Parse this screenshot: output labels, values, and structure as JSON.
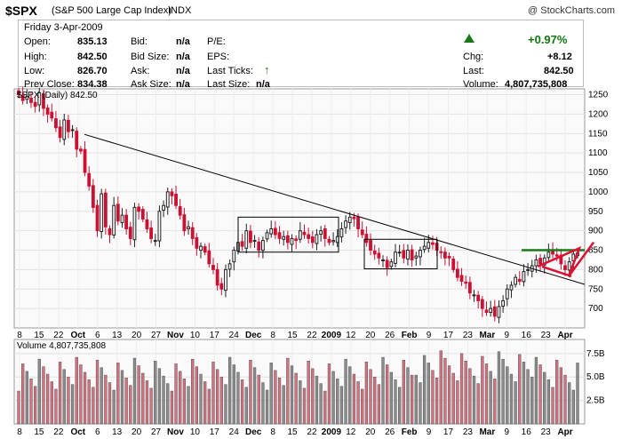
{
  "header": {
    "symbol": "$SPX",
    "name": "(S&P 500 Large Cap Index)",
    "exchange": "INDX",
    "brand": "@ StockCharts.com"
  },
  "quote": {
    "date": "Friday  3-Apr-2009",
    "open_label": "Open:",
    "open": "835.13",
    "high_label": "High:",
    "high": "842.50",
    "low_label": "Low:",
    "low": "826.70",
    "prev_label": "Prev Close:",
    "prev": "834.38",
    "bid_label": "Bid:",
    "bid": "n/a",
    "bidsize_label": "Bid Size:",
    "bidsize": "n/a",
    "ask_label": "Ask:",
    "ask": "n/a",
    "asksize_label": "Ask Size:",
    "asksize": "n/a",
    "pe_label": "P/E:",
    "eps_label": "EPS:",
    "lastticks_label": "Last Ticks:",
    "lastsize_label": "Last Size:",
    "lastsize": "n/a",
    "pct_change": "+0.97%",
    "chg_label": "Chg:",
    "chg": "+8.12",
    "last_label": "Last:",
    "last": "842.50",
    "volume_label": "Volume:",
    "volume": "4,807,735,808",
    "up_color": "#1a7a1a"
  },
  "chart_data": [
    {
      "type": "candlestick",
      "legend": "$SPX (Daily) 842.50",
      "y_ticks": [
        700,
        750,
        800,
        850,
        900,
        950,
        1000,
        1050,
        1100,
        1150,
        1200,
        1250
      ],
      "ylim": [
        650,
        1265
      ],
      "x_labels": [
        "8",
        "15",
        "22",
        "Oct",
        "6",
        "13",
        "20",
        "27",
        "Nov",
        "10",
        "17",
        "24",
        "Dec",
        "8",
        "15",
        "22",
        "2009",
        "12",
        "20",
        "26",
        "Feb",
        "9",
        "17",
        "23",
        "Mar",
        "9",
        "16",
        "23",
        "Apr"
      ],
      "bold_x_labels": [
        "Oct",
        "Nov",
        "Dec",
        "2009",
        "Feb",
        "Mar",
        "Apr"
      ],
      "colors": {
        "up": "#222222",
        "down": "#cc1133",
        "trend": "#000000",
        "breakout": "#1a7a1a",
        "wedge": "#dd1133"
      },
      "series_approx_closes": [
        1250,
        1235,
        1245,
        1230,
        1220,
        1255,
        1215,
        1200,
        1190,
        1165,
        1140,
        1185,
        1155,
        1160,
        1110,
        1105,
        1050,
        1015,
        960,
        900,
        995,
        910,
        890,
        965,
        925,
        940,
        905,
        880,
        960,
        950,
        930,
        905,
        880,
        875,
        950,
        965,
        1000,
        990,
        965,
        940,
        900,
        910,
        880,
        855,
        860,
        845,
        815,
        800,
        760,
        750,
        800,
        815,
        850,
        870,
        860,
        900,
        870,
        875,
        850,
        875,
        895,
        905,
        890,
        880,
        885,
        870,
        880,
        875,
        900,
        890,
        880,
        870,
        890,
        900,
        880,
        870,
        875,
        885,
        905,
        925,
        935,
        931,
        905,
        890,
        870,
        850,
        840,
        830,
        825,
        805,
        820,
        845,
        845,
        830,
        850,
        825,
        835,
        850,
        860,
        870,
        865,
        850,
        845,
        830,
        830,
        800,
        780,
        770,
        765,
        740,
        735,
        720,
        700,
        690,
        700,
        680,
        705,
        720,
        750,
        760,
        780,
        770,
        795,
        800,
        810,
        825,
        815,
        830,
        845,
        840,
        835,
        815,
        800,
        820,
        840,
        843
      ],
      "annotations": [
        "trend line",
        "consolidation box Dec",
        "consolidation box Feb",
        "green breakout line ~850",
        "red rising wedge"
      ]
    },
    {
      "type": "bar",
      "legend": "Volume 4,807,735,808",
      "y_ticks": [
        "2.5B",
        "5.0B",
        "7.5B"
      ],
      "ylim": [
        0,
        9
      ]
    }
  ]
}
